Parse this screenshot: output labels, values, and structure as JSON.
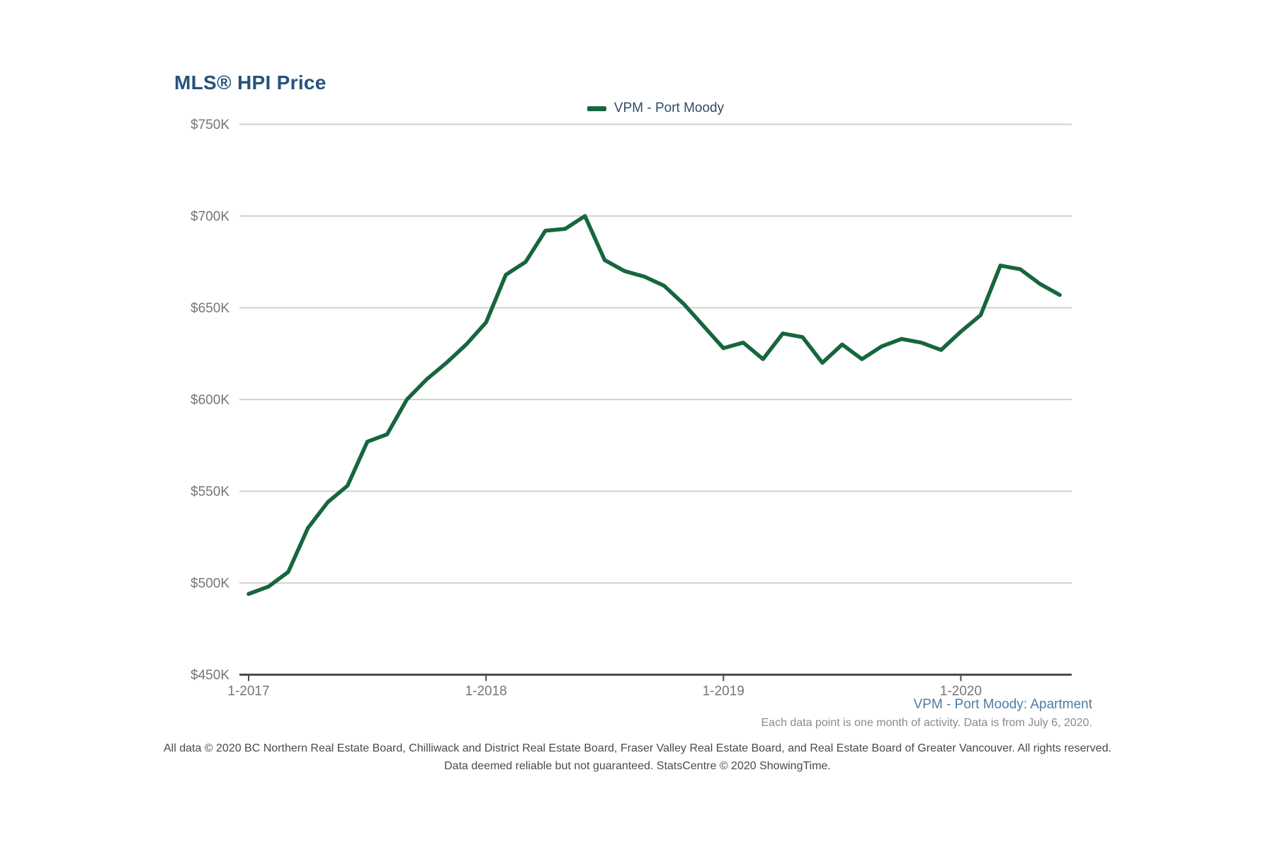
{
  "title": "MLS® HPI Price",
  "legend": {
    "label": "VPM - Port Moody",
    "swatch_color": "#17663d"
  },
  "notes": {
    "series_note": "VPM - Port Moody: Apartment",
    "data_note": "Each data point is one month of activity. Data is from July 6, 2020.",
    "footer_line1": "All data © 2020 BC Northern Real Estate Board, Chilliwack and District Real Estate Board, Fraser Valley Real Estate Board, and Real Estate Board of Greater Vancouver. All rights reserved.",
    "footer_line2": "Data deemed reliable but not guaranteed. StatsCentre © 2020 ShowingTime."
  },
  "chart_data": {
    "type": "line",
    "title": "MLS® HPI Price",
    "xlabel": "",
    "ylabel": "",
    "unit": "CAD, thousands",
    "ylim_thousands": [
      450,
      750
    ],
    "grid": "horizontal-only",
    "legend_position": "top-center",
    "y_ticks": [
      {
        "label": "$750K",
        "value_thousands": 750
      },
      {
        "label": "$700K",
        "value_thousands": 700
      },
      {
        "label": "$650K",
        "value_thousands": 650
      },
      {
        "label": "$600K",
        "value_thousands": 600
      },
      {
        "label": "$550K",
        "value_thousands": 550
      },
      {
        "label": "$500K",
        "value_thousands": 500
      },
      {
        "label": "$450K",
        "value_thousands": 450
      }
    ],
    "x_ticks": [
      {
        "label": "1-2017",
        "month_index": 0
      },
      {
        "label": "1-2018",
        "month_index": 12
      },
      {
        "label": "1-2019",
        "month_index": 24
      },
      {
        "label": "1-2020",
        "month_index": 36
      }
    ],
    "series": [
      {
        "name": "VPM - Port Moody",
        "color": "#17663d",
        "months": [
          "1-2017",
          "2-2017",
          "3-2017",
          "4-2017",
          "5-2017",
          "6-2017",
          "7-2017",
          "8-2017",
          "9-2017",
          "10-2017",
          "11-2017",
          "12-2017",
          "1-2018",
          "2-2018",
          "3-2018",
          "4-2018",
          "5-2018",
          "6-2018",
          "7-2018",
          "8-2018",
          "9-2018",
          "10-2018",
          "11-2018",
          "12-2018",
          "1-2019",
          "2-2019",
          "3-2019",
          "4-2019",
          "5-2019",
          "6-2019",
          "7-2019",
          "8-2019",
          "9-2019",
          "10-2019",
          "11-2019",
          "12-2019",
          "1-2020",
          "2-2020",
          "3-2020",
          "4-2020",
          "5-2020",
          "6-2020"
        ],
        "values_thousands": [
          494,
          498,
          506,
          530,
          544,
          553,
          577,
          581,
          600,
          611,
          620,
          630,
          642,
          668,
          675,
          692,
          693,
          700,
          676,
          670,
          667,
          662,
          652,
          640,
          628,
          631,
          622,
          636,
          634,
          620,
          630,
          622,
          629,
          633,
          631,
          627,
          637,
          646,
          673,
          671,
          663,
          657
        ]
      }
    ]
  }
}
